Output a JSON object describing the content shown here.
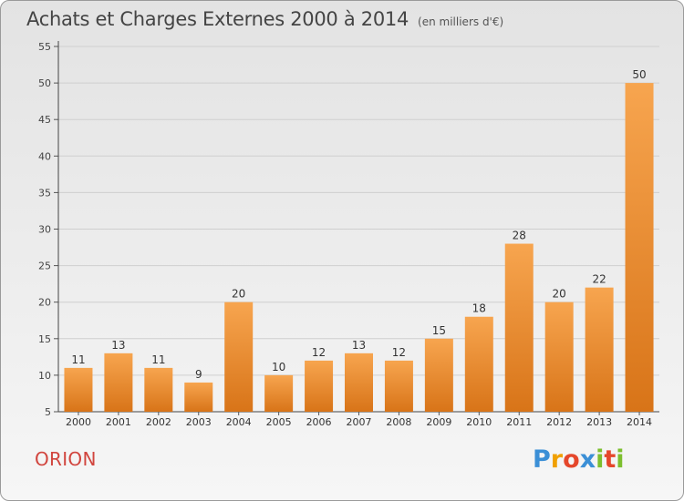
{
  "title": "Achats et Charges Externes 2000 à 2014",
  "unit": "(en milliers d'€)",
  "town": "ORION",
  "logo": {
    "letters": [
      "P",
      "r",
      "o",
      "x",
      "i",
      "t",
      "i"
    ],
    "colors": [
      "#3b8fd6",
      "#f0a000",
      "#e5472b",
      "#3b8fd6",
      "#7dbf2f",
      "#e5472b",
      "#7dbf2f"
    ]
  },
  "colors": {
    "bar_light": "#f7a54f",
    "bar_dark": "#d87418",
    "grid": "#cfcfcf"
  },
  "chart_data": {
    "type": "bar",
    "categories": [
      "2000",
      "2001",
      "2002",
      "2003",
      "2004",
      "2005",
      "2006",
      "2007",
      "2008",
      "2009",
      "2010",
      "2011",
      "2012",
      "2013",
      "2014"
    ],
    "values": [
      11,
      13,
      11,
      9,
      20,
      10,
      12,
      13,
      12,
      15,
      18,
      28,
      20,
      22,
      50
    ],
    "ylim": [
      5,
      55
    ],
    "yticks": [
      5,
      10,
      15,
      20,
      25,
      30,
      35,
      40,
      45,
      50,
      55
    ],
    "grid": true
  }
}
